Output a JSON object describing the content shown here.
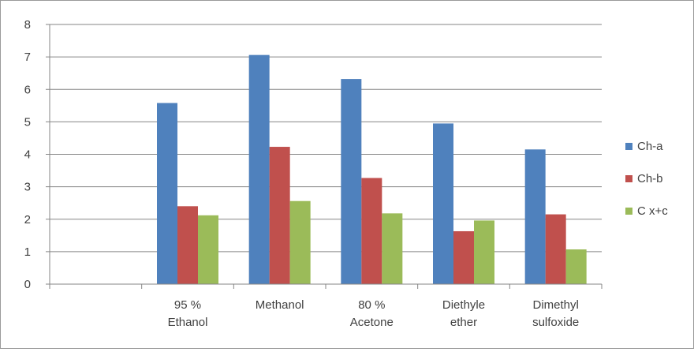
{
  "chart_data": {
    "type": "bar",
    "title": "",
    "xlabel": "",
    "ylabel": "",
    "ylim": [
      0,
      8
    ],
    "yticks": [
      0,
      1,
      2,
      3,
      4,
      5,
      6,
      7,
      8
    ],
    "grid": "horizontal",
    "legend_position": "right",
    "categories": [
      [
        "",
        ""
      ],
      [
        "95 %",
        "Ethanol"
      ],
      [
        "Methanol",
        ""
      ],
      [
        "80 %",
        "Acetone"
      ],
      [
        "Diethyle",
        "ether"
      ],
      [
        "Dimethyl",
        "sulfoxide"
      ]
    ],
    "series": [
      {
        "name": "Ch-a",
        "color": "#4f81bd",
        "values": [
          null,
          5.58,
          7.06,
          6.32,
          4.95,
          4.15
        ]
      },
      {
        "name": "Ch-b",
        "color": "#c0504d",
        "values": [
          null,
          2.4,
          4.23,
          3.27,
          1.63,
          2.15
        ]
      },
      {
        "name": "C x+c",
        "color": "#9bbb59",
        "values": [
          null,
          2.12,
          2.56,
          2.18,
          1.96,
          1.07
        ]
      }
    ]
  }
}
